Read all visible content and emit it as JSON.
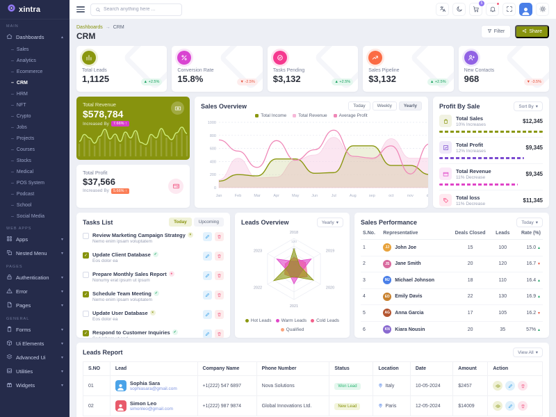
{
  "theme": {
    "accent": "#87930e",
    "sidebar_bg": "#252b4a",
    "success": "#17a05e",
    "danger": "#e6533c",
    "magenta": "#d93bcb",
    "pink": "#f2608a",
    "orange": "#fb7d55",
    "purple": "#9162e4",
    "blue": "#3aa0e8"
  },
  "sidebar": {
    "logo_text": "xintra",
    "sections": [
      {
        "label": "MAIN",
        "items": [
          {
            "label": "Dashboards",
            "icon": "home",
            "expanded": true,
            "active_child": "CRM",
            "children": [
              "Sales",
              "Analytics",
              "Ecommerce",
              "CRM",
              "HRM",
              "NFT",
              "Crypto",
              "Jobs",
              "Projects",
              "Courses",
              "Stocks",
              "Medical",
              "POS System",
              "Podcast",
              "School",
              "Social Media"
            ]
          }
        ]
      },
      {
        "label": "WEB APPS",
        "items": [
          {
            "label": "Apps",
            "icon": "grid"
          },
          {
            "label": "Nested Menu",
            "icon": "nested"
          }
        ]
      },
      {
        "label": "PAGES",
        "items": [
          {
            "label": "Authentication",
            "icon": "lock"
          },
          {
            "label": "Error",
            "icon": "warning"
          },
          {
            "label": "Pages",
            "icon": "file"
          }
        ]
      },
      {
        "label": "GENERAL",
        "items": [
          {
            "label": "Forms",
            "icon": "clipboard"
          },
          {
            "label": "Ui Elements",
            "icon": "box"
          },
          {
            "label": "Advanced Ui",
            "icon": "layers"
          },
          {
            "label": "Utilities",
            "icon": "inbox"
          },
          {
            "label": "Widgets",
            "icon": "gift"
          }
        ]
      }
    ]
  },
  "header": {
    "search_placeholder": "Search anything here ...",
    "cart_badge": "5",
    "icons": [
      "translate",
      "moon",
      "cart",
      "bell",
      "expand",
      "avatar",
      "gear"
    ]
  },
  "breadcrumb": {
    "items": [
      "Dashboards",
      "CRM"
    ],
    "page_title": "CRM",
    "filter_label": "Filter",
    "share_label": "Share"
  },
  "stats": [
    {
      "label": "Total Leads",
      "value": "1,1125",
      "delta": "+2.5%",
      "direction": "up",
      "icon": "chart-bars",
      "color": "#8a970f"
    },
    {
      "label": "Conversion Rate",
      "value": "15.8%",
      "delta": "-2.5%",
      "direction": "down",
      "icon": "percent",
      "color": "#d944d1"
    },
    {
      "label": "Tasks Pending",
      "value": "$3,132",
      "delta": "+2.5%",
      "direction": "up",
      "icon": "task-check",
      "color": "#f5398f"
    },
    {
      "label": "Sales Pipeline",
      "value": "$3,132",
      "delta": "+2.5%",
      "direction": "up",
      "icon": "trend",
      "color": "#fb6b44"
    },
    {
      "label": "New Contacts",
      "value": "968",
      "delta": "-3.5%",
      "direction": "down",
      "icon": "user-plus",
      "color": "#9162e4"
    }
  ],
  "revenue_card": {
    "title": "Total Revenue",
    "value": "$578,784",
    "sub": "Increased By",
    "badge": "7.66% ↑"
  },
  "profit_card": {
    "title": "Total Profit",
    "value": "$37,566",
    "sub": "Increased By",
    "badge": "5.66% ↑"
  },
  "sales_overview": {
    "title": "Sales Overview",
    "tabs": [
      "Today",
      "Weekly",
      "Yearly"
    ],
    "active_tab": "Yearly"
  },
  "profit_by_sale": {
    "title": "Profit By Sale",
    "sort_label": "Sort By",
    "items": [
      {
        "label": "Total Sales",
        "sub": "10% Increases",
        "value": "$12,345",
        "color": "#8a970f",
        "icon": "bag",
        "bar": 100
      },
      {
        "label": "Total Profit",
        "sub": "12% Increases",
        "value": "$9,345",
        "color": "#7b4bd0",
        "icon": "chart-square",
        "bar": 82
      },
      {
        "label": "Total Revenue",
        "sub": "11% Decrease",
        "value": "$9,345",
        "color": "#e045c8",
        "icon": "credit-card",
        "bar": 76
      },
      {
        "label": "Total loss",
        "sub": "11% Decrease",
        "value": "$11,345",
        "color": "#fb4c82",
        "icon": "tag",
        "bar": 73
      }
    ]
  },
  "tasks": {
    "title": "Tasks List",
    "tabs": [
      "Today",
      "Upcoming"
    ],
    "active_tab": "Today",
    "items": [
      {
        "title": "Review Marketing Campaign Strategy",
        "sub": "Nemo enim ipsam voluptatem",
        "checked": false,
        "badge": "x",
        "badge_color": "olive"
      },
      {
        "title": "Update Client Database",
        "sub": "Eos dolor ea",
        "checked": true,
        "badge": "check",
        "badge_color": "green"
      },
      {
        "title": "Prepare Monthly Sales Report",
        "sub": "Nonumy erat ipsum ut ipsum",
        "checked": false,
        "badge": "dot",
        "badge_color": "pink"
      },
      {
        "title": "Schedule Team Meeting",
        "sub": "Nemo enim ipsam voluptatem",
        "checked": true,
        "badge": "check",
        "badge_color": "green"
      },
      {
        "title": "Update User Database",
        "sub": "Eos dolor ea",
        "checked": false,
        "badge": "x",
        "badge_color": "olive"
      },
      {
        "title": "Respond to Customer Inquiries",
        "sub": "Sed labore ut sed",
        "checked": true,
        "badge": "check",
        "badge_color": "green"
      }
    ]
  },
  "leads_overview": {
    "title": "Leads Overview",
    "dropdown": "Yearly"
  },
  "sales_performance": {
    "title": "Sales Performance",
    "dropdown": "Today",
    "columns": [
      "S.No.",
      "Representative",
      "Deals Closed",
      "Leads",
      "Rate (%)"
    ],
    "rows": [
      {
        "sno": "1",
        "name": "John Joe",
        "deals": "15",
        "leads": "100",
        "rate": "15.0",
        "direction": "up",
        "avatar_color": "#e8a33d"
      },
      {
        "sno": "2",
        "name": "Jane Smith",
        "deals": "20",
        "leads": "120",
        "rate": "16.7",
        "direction": "down",
        "avatar_color": "#d96a9e"
      },
      {
        "sno": "3",
        "name": "Michael Johnson",
        "deals": "18",
        "leads": "110",
        "rate": "16.4",
        "direction": "up",
        "avatar_color": "#4a7fe8"
      },
      {
        "sno": "4",
        "name": "Emily Davis",
        "deals": "22",
        "leads": "130",
        "rate": "16.9",
        "direction": "up",
        "avatar_color": "#c9822f"
      },
      {
        "sno": "5",
        "name": "Anna Garcia",
        "deals": "17",
        "leads": "105",
        "rate": "16.2",
        "direction": "down",
        "avatar_color": "#b4552f"
      },
      {
        "sno": "6",
        "name": "Kiara Nousin",
        "deals": "20",
        "leads": "35",
        "rate": "57%",
        "direction": "up",
        "avatar_color": "#8a6ad0"
      }
    ]
  },
  "leads_report": {
    "title": "Leads Report",
    "view_all_label": "View All",
    "columns": [
      "S.NO",
      "Lead",
      "Company Name",
      "Phone Number",
      "Status",
      "Location",
      "Date",
      "Amount",
      "Action"
    ],
    "rows": [
      {
        "sno": "01",
        "name": "Sophia Sara",
        "email": "sophiasara@gmail.com",
        "phone": "+1(222) 547 6897",
        "company": "Nova Solutions",
        "status": "Won Lead",
        "status_type": "success",
        "location": "Italy",
        "date": "10-05-2024",
        "amount": "$2457",
        "avatar_color": "#4aa3e8"
      },
      {
        "sno": "02",
        "name": "Simon Leo",
        "email": "simonleo@gmail.com",
        "phone": "+1(222) 987 9874",
        "company": "Global Innovations Ltd.",
        "status": "New Lead",
        "status_type": "new",
        "location": "Paris",
        "date": "12-05-2024",
        "amount": "$14009",
        "avatar_color": "#e85a6a"
      }
    ]
  },
  "chart_data": [
    {
      "id": "sales_overview",
      "type": "line",
      "title": "Sales Overview",
      "x": [
        "Jan",
        "Feb",
        "Mar",
        "Apr",
        "May",
        "Jun",
        "Jul",
        "Aug",
        "sep",
        "oct",
        "nov",
        "dec"
      ],
      "ylim": [
        0,
        1000
      ],
      "yticks": [
        0,
        200,
        400,
        600,
        800,
        1000
      ],
      "grid": true,
      "legend_position": "top",
      "series": [
        {
          "name": "Total Income",
          "color": "#8a970f",
          "fill": true,
          "values": [
            100,
            200,
            180,
            440,
            440,
            220,
            230,
            640,
            640,
            340,
            340,
            200
          ]
        },
        {
          "name": "Total Revenue",
          "color": "#f6b8d8",
          "fill": true,
          "values": [
            120,
            450,
            150,
            160,
            420,
            500,
            770,
            460,
            430,
            750,
            450,
            450
          ]
        },
        {
          "name": "Average Profit",
          "color": "#ef87b7",
          "fill": false,
          "values": [
            730,
            560,
            310,
            720,
            420,
            580,
            880,
            480,
            450,
            640,
            210,
            670
          ]
        }
      ]
    },
    {
      "id": "leads_overview",
      "type": "radar",
      "categories": [
        "2018",
        "2019",
        "2020",
        "2021",
        "2022",
        "2023"
      ],
      "rlim": [
        0,
        120
      ],
      "rticks": [
        0,
        30,
        60,
        90,
        120
      ],
      "series": [
        {
          "name": "Hot Leads",
          "color": "#8a970f",
          "values": [
            80,
            25,
            88,
            30,
            92,
            25
          ]
        },
        {
          "name": "Warm Leads",
          "color": "#e045c8",
          "values": [
            30,
            78,
            30,
            58,
            25,
            78
          ]
        },
        {
          "name": "Cold Leads",
          "color": "#f2608a",
          "values": [
            45,
            52,
            60,
            35,
            42,
            40
          ]
        },
        {
          "name": "Qualified",
          "color": "#fba37c",
          "values": [
            35,
            45,
            50,
            30,
            36,
            32
          ]
        }
      ]
    },
    {
      "id": "revenue_spark",
      "type": "area",
      "color": "#cdeb7a",
      "values": [
        35,
        55,
        45,
        30,
        50,
        70,
        42,
        56,
        35,
        62,
        45,
        66,
        32,
        26,
        55,
        45,
        72,
        52,
        40,
        60,
        76,
        58
      ]
    }
  ]
}
